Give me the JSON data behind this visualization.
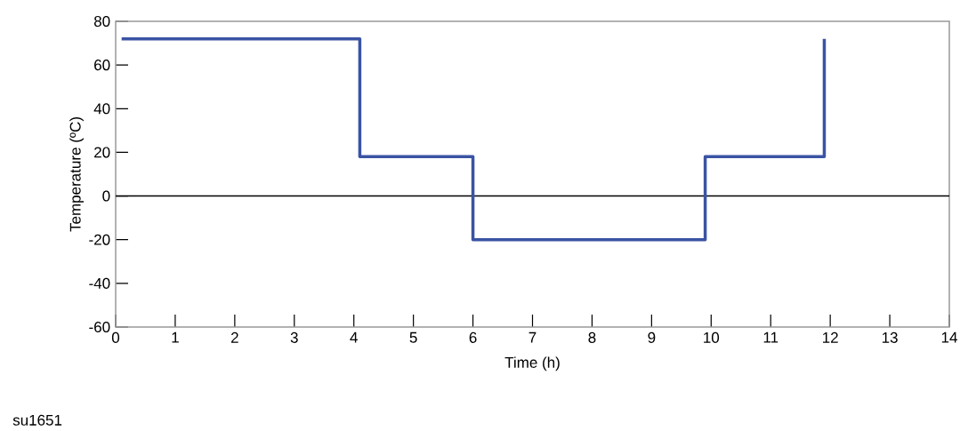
{
  "chart_data": {
    "type": "step",
    "xlabel": "Time   (h)",
    "ylabel": "Temperature   (ºC)",
    "x": [
      0.1,
      4.1,
      6,
      9.9,
      11.9
    ],
    "series": [
      {
        "color": "#3a53a4",
        "values": [
          72,
          18,
          -20,
          18,
          72
        ]
      }
    ],
    "xlim": [
      0,
      14
    ],
    "xticks": [
      0,
      1,
      2,
      3,
      4,
      5,
      6,
      7,
      8,
      9,
      10,
      11,
      12,
      13,
      14
    ],
    "ylim": [
      -60,
      80
    ],
    "yticks": [
      -60,
      -40,
      -20,
      0,
      20,
      40,
      60,
      80
    ],
    "ref_lines": [
      {
        "axis": "y",
        "value": 0,
        "color": "#000000"
      }
    ],
    "annotations": [
      "su1651"
    ],
    "grid": false
  }
}
